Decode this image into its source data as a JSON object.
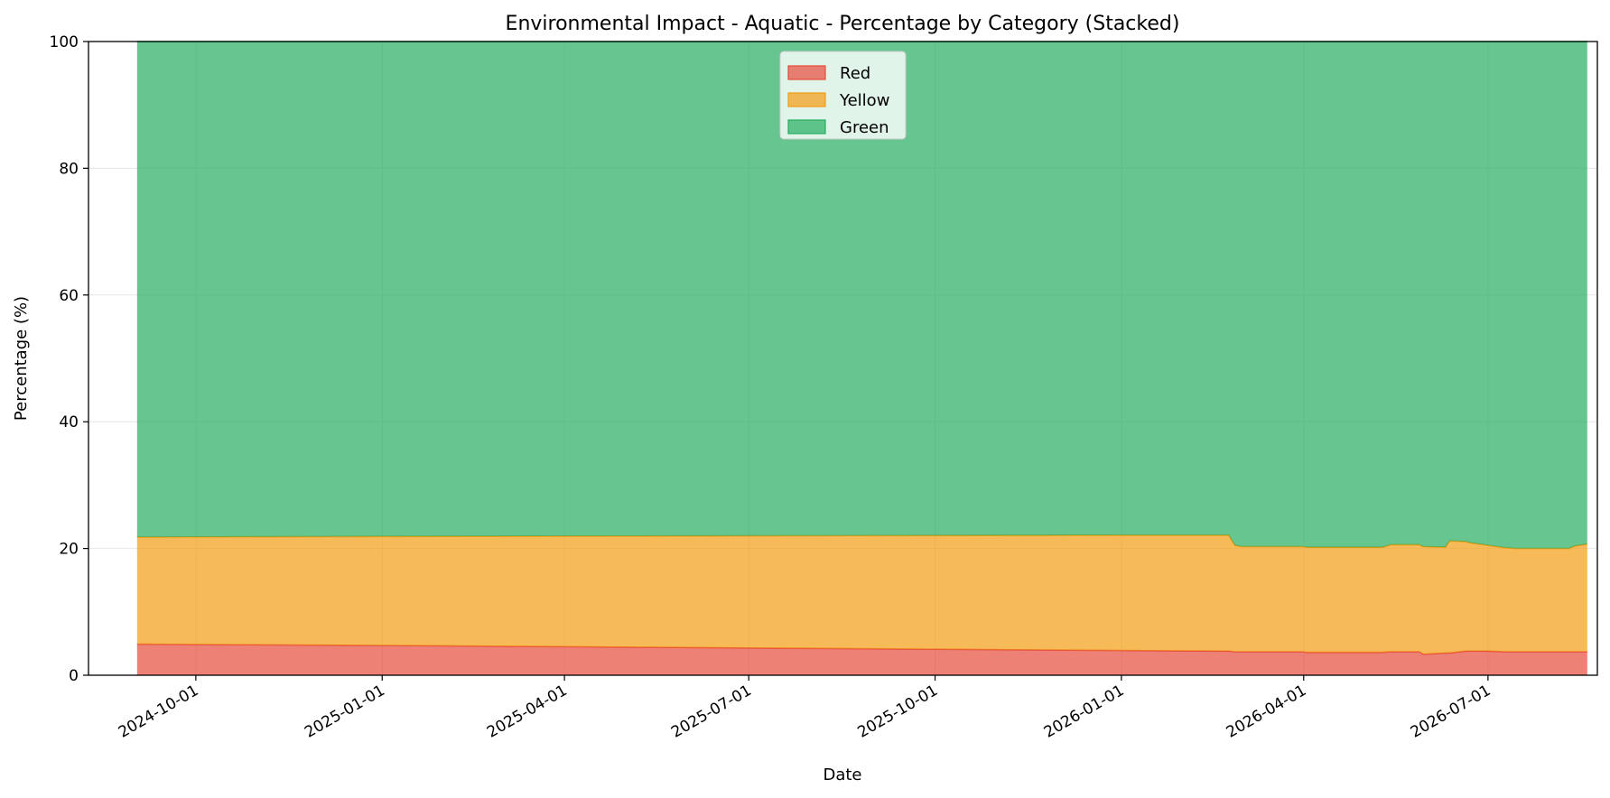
{
  "chart_data": {
    "type": "area",
    "stacked": true,
    "title": "Environmental Impact - Aquatic - Percentage by Category (Stacked)",
    "xlabel": "Date",
    "ylabel": "Percentage (%)",
    "ylim": [
      0,
      100
    ],
    "xlim": [
      "2024-08-09",
      "2026-08-24"
    ],
    "yticks": [
      0,
      20,
      40,
      60,
      80,
      100
    ],
    "xticks": [
      "2024-10-01",
      "2025-01-01",
      "2025-04-01",
      "2025-07-01",
      "2025-10-01",
      "2026-01-01",
      "2026-04-01",
      "2026-07-01"
    ],
    "grid": true,
    "legend_position": "top-center",
    "x": [
      "2024-09-02",
      "2025-01-01",
      "2025-07-01",
      "2026-01-01",
      "2026-02-23",
      "2026-02-26",
      "2026-03-01",
      "2026-04-01",
      "2026-04-02",
      "2026-05-01",
      "2026-05-10",
      "2026-05-14",
      "2026-05-28",
      "2026-05-30",
      "2026-06-10",
      "2026-06-12",
      "2026-06-20",
      "2026-06-22",
      "2026-07-01",
      "2026-07-10",
      "2026-07-15",
      "2026-08-10",
      "2026-08-13",
      "2026-08-19"
    ],
    "series": [
      {
        "name": "Red",
        "color": "#e74c3c",
        "values": [
          4.9,
          4.7,
          4.3,
          3.9,
          3.8,
          3.7,
          3.7,
          3.7,
          3.6,
          3.6,
          3.6,
          3.7,
          3.7,
          3.3,
          3.5,
          3.5,
          3.8,
          3.8,
          3.8,
          3.7,
          3.7,
          3.7,
          3.7,
          3.7
        ]
      },
      {
        "name": "Yellow",
        "color": "#f39c12",
        "values": [
          16.9,
          17.2,
          17.7,
          18.2,
          18.3,
          16.8,
          16.6,
          16.6,
          16.6,
          16.6,
          16.6,
          16.9,
          16.9,
          17.0,
          16.7,
          17.7,
          17.3,
          17.1,
          16.7,
          16.4,
          16.3,
          16.3,
          16.7,
          17.0
        ]
      },
      {
        "name": "Green",
        "color": "#27ae60",
        "values": [
          78.2,
          78.1,
          78.0,
          77.9,
          77.9,
          79.5,
          79.7,
          79.7,
          79.8,
          79.8,
          79.8,
          79.4,
          79.4,
          79.7,
          79.8,
          78.8,
          78.9,
          79.1,
          79.5,
          79.9,
          80.0,
          80.0,
          79.6,
          79.3
        ]
      }
    ]
  }
}
